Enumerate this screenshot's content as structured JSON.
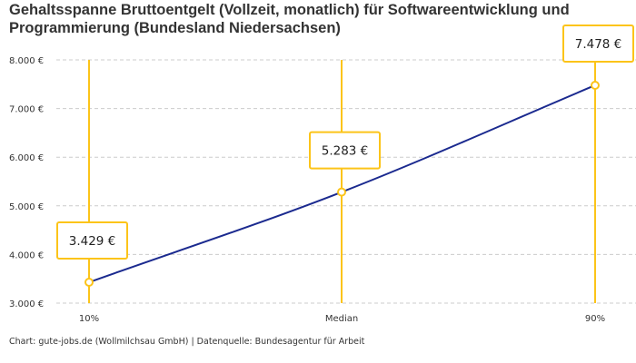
{
  "title": "Gehaltsspanne Bruttoentgelt (Vollzeit, monatlich) für Softwareentwicklung und Programmierung (Bundesland Niedersachsen)",
  "credit": "Chart: gute-jobs.de (Wollmilchsau GmbH) | Datenquelle: Bundesagentur für Arbeit",
  "colors": {
    "line": "#1b2a8f",
    "marker": "#fcc419",
    "grid": "#cccccc"
  },
  "chart_data": {
    "type": "line",
    "categories": [
      "10%",
      "Median",
      "90%"
    ],
    "values": [
      3429,
      5283,
      7478
    ],
    "data_labels": [
      "3.429 €",
      "5.283 €",
      "7.478 €"
    ],
    "ylim": [
      3000,
      8000
    ],
    "yticks": [
      3000,
      4000,
      5000,
      6000,
      7000,
      8000
    ],
    "ytick_labels": [
      "3.000 €",
      "4.000 €",
      "5.000 €",
      "6.000 €",
      "7.000 €",
      "8.000 €"
    ],
    "grid": true,
    "title": "Gehaltsspanne Bruttoentgelt (Vollzeit, monatlich) für Softwareentwicklung und Programmierung (Bundesland Niedersachsen)"
  }
}
